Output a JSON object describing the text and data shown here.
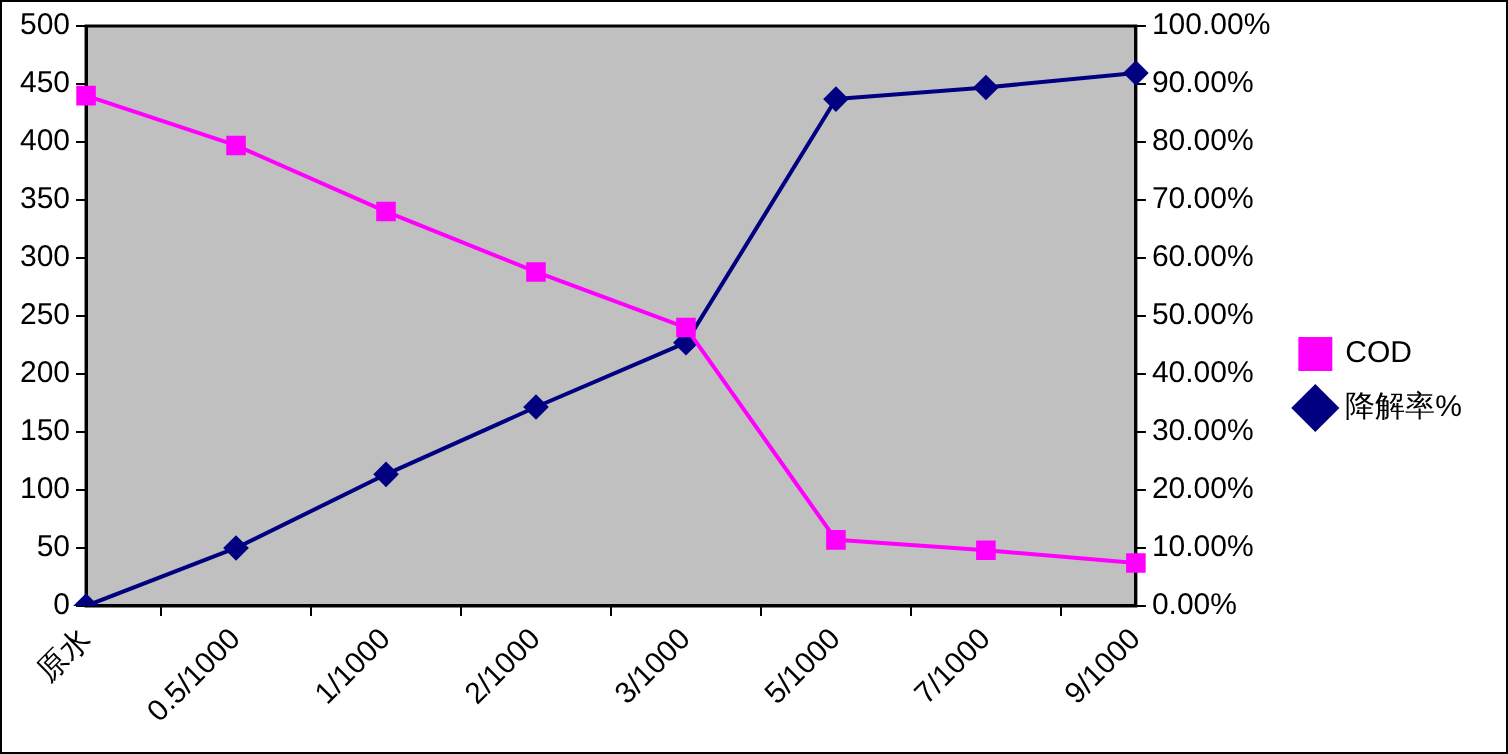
{
  "chart_data": {
    "type": "line",
    "categories": [
      "原水",
      "0.5/1000",
      "1/1000",
      "2/1000",
      "3/1000",
      "5/1000",
      "7/1000",
      "9/1000"
    ],
    "series": [
      {
        "name": "COD",
        "color": "#ff00ff",
        "marker": "square",
        "values": [
          440,
          397,
          340,
          288,
          240,
          57,
          48,
          37
        ]
      },
      {
        "name": "降解率%",
        "color": "#000080",
        "marker": "diamond",
        "axis": "y2",
        "values": [
          0,
          10,
          22.7,
          34.3,
          45.4,
          87.4,
          89.4,
          91.9
        ]
      }
    ],
    "ylim": [
      0,
      500
    ],
    "yticks": [
      0,
      50,
      100,
      150,
      200,
      250,
      300,
      350,
      400,
      450,
      500
    ],
    "y2lim": [
      0,
      100
    ],
    "y2ticks": [
      {
        "value": 0,
        "label": "0.00%"
      },
      {
        "value": 10,
        "label": "10.00%"
      },
      {
        "value": 20,
        "label": "20.00%"
      },
      {
        "value": 30,
        "label": "30.00%"
      },
      {
        "value": 40,
        "label": "40.00%"
      },
      {
        "value": 50,
        "label": "50.00%"
      },
      {
        "value": 60,
        "label": "60.00%"
      },
      {
        "value": 70,
        "label": "70.00%"
      },
      {
        "value": 80,
        "label": "80.00%"
      },
      {
        "value": 90,
        "label": "90.00%"
      },
      {
        "value": 100,
        "label": "100.00%"
      }
    ],
    "grid": false,
    "legend": "right"
  }
}
